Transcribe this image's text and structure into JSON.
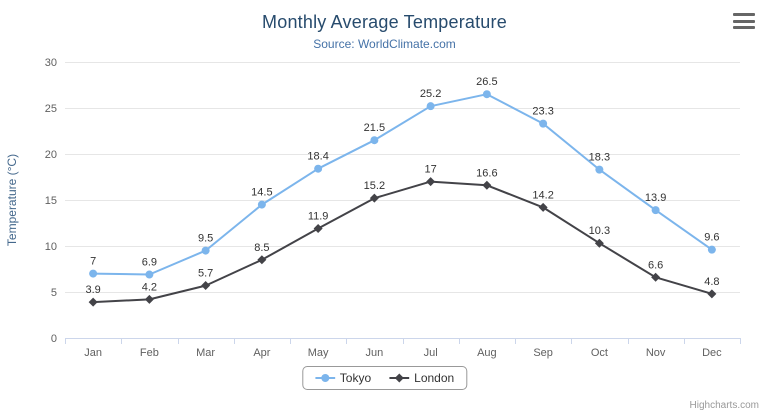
{
  "chart_data": {
    "type": "line",
    "title": "Monthly Average Temperature",
    "subtitle": "Source: WorldClimate.com",
    "categories": [
      "Jan",
      "Feb",
      "Mar",
      "Apr",
      "May",
      "Jun",
      "Jul",
      "Aug",
      "Sep",
      "Oct",
      "Nov",
      "Dec"
    ],
    "series": [
      {
        "name": "Tokyo",
        "color": "#7cb5ec",
        "marker": "circle",
        "values": [
          7,
          6.9,
          9.5,
          14.5,
          18.4,
          21.5,
          25.2,
          26.5,
          23.3,
          18.3,
          13.9,
          9.6
        ]
      },
      {
        "name": "London",
        "color": "#434348",
        "marker": "diamond",
        "values": [
          3.9,
          4.2,
          5.7,
          8.5,
          11.9,
          15.2,
          17,
          16.6,
          14.2,
          10.3,
          6.6,
          4.8
        ]
      }
    ],
    "xlabel": "",
    "ylabel": "Temperature (°C)",
    "ylim": [
      0,
      30
    ],
    "yticks": [
      0,
      5,
      10,
      15,
      20,
      25,
      30
    ],
    "grid": true,
    "data_labels": true,
    "legend_position": "bottom",
    "credits": "Highcharts.com"
  }
}
